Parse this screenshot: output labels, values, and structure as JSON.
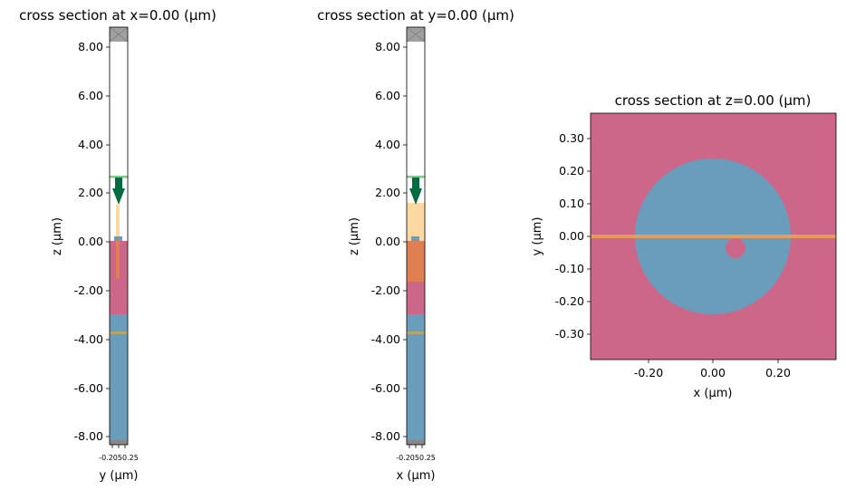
{
  "panels": [
    {
      "title": "cross section at x=0.00 (µm)",
      "xlabel": "y (µm)",
      "ylabel": "z (µm)",
      "yticks": [
        "8.00",
        "6.00",
        "4.00",
        "2.00",
        "0.00",
        "-2.00",
        "-4.00",
        "-6.00",
        "-8.00"
      ],
      "xticks": [
        "-0.25",
        "0.00",
        "0.25"
      ],
      "xticks_overlap_text": "-0.2050.25"
    },
    {
      "title": "cross section at y=0.00 (µm)",
      "xlabel": "x (µm)",
      "ylabel": "z (µm)",
      "yticks": [
        "8.00",
        "6.00",
        "4.00",
        "2.00",
        "0.00",
        "-2.00",
        "-4.00",
        "-6.00",
        "-8.00"
      ],
      "xticks": [
        "-0.25",
        "0.00",
        "0.25"
      ],
      "xticks_overlap_text": "-0.2050.25"
    },
    {
      "title": "cross section at z=0.00 (µm)",
      "xlabel": "x (µm)",
      "ylabel": "y (µm)",
      "yticks": [
        "0.30",
        "0.20",
        "0.10",
        "0.00",
        "-0.10",
        "-0.20",
        "-0.30"
      ],
      "xticks": [
        "-0.20",
        "0.00",
        "0.20"
      ]
    }
  ],
  "colors": {
    "pml": "#999999",
    "substrate": "#6a9dbc",
    "cladding": "#cd678a",
    "core": "#e07f52",
    "resonator_gap": "#fdd8a0",
    "monitor": "#b4a66b",
    "source_arrow": "#006c3f",
    "source_plane": "#84c784"
  }
}
